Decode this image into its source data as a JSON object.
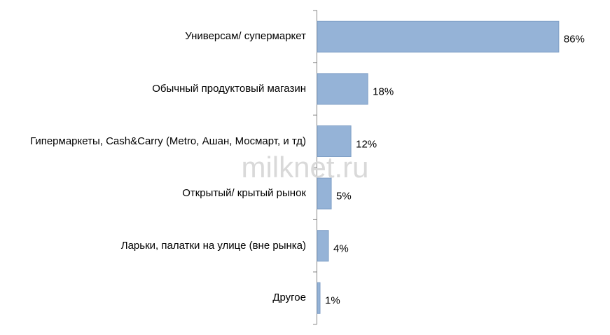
{
  "chart_data": {
    "type": "bar",
    "orientation": "horizontal",
    "categories": [
      "Универсам/ супермаркет",
      "Обычный продуктовый магазин",
      "Гипермаркеты, Cash&Carry  (Metro, Ашан, Мосмарт, и тд)",
      "Открытый/ крытый рынок",
      "Ларьки, палатки на улице (вне рынка)",
      "Другое"
    ],
    "values": [
      86,
      18,
      12,
      5,
      4,
      1
    ],
    "value_labels": [
      "86%",
      "18%",
      "12%",
      "5%",
      "4%",
      "1%"
    ],
    "color": "#95b3d7",
    "watermark": "milknet.ru"
  }
}
